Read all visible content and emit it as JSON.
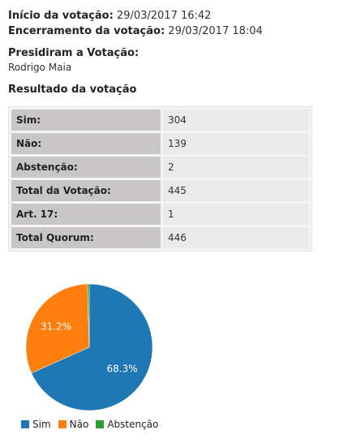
{
  "info": {
    "inicio_label": "Início da votação:",
    "inicio_value": "29/03/2017 16:42",
    "encerramento_label": "Encerramento da votação:",
    "encerramento_value": "29/03/2017 18:04"
  },
  "presidiram": {
    "label": "Presidiram a Votação:",
    "name": "Rodrigo Maia"
  },
  "resultado": {
    "title": "Resultado da votação",
    "rows": [
      {
        "label": "Sim:",
        "value": "304"
      },
      {
        "label": "Não:",
        "value": "139"
      },
      {
        "label": "Abstenção:",
        "value": "2"
      },
      {
        "label": "Total da Votação:",
        "value": "445"
      },
      {
        "label": "Art. 17:",
        "value": "1"
      },
      {
        "label": "Total Quorum:",
        "value": "446"
      }
    ]
  },
  "chart_data": {
    "type": "pie",
    "categories": [
      "Sim",
      "Não",
      "Abstenção"
    ],
    "values": [
      304,
      139,
      2
    ],
    "labels": [
      "68.3%",
      "31.2%",
      ""
    ],
    "colors": [
      "#1f77b4",
      "#ff7f0e",
      "#2ca02c"
    ],
    "legend_position": "bottom"
  }
}
